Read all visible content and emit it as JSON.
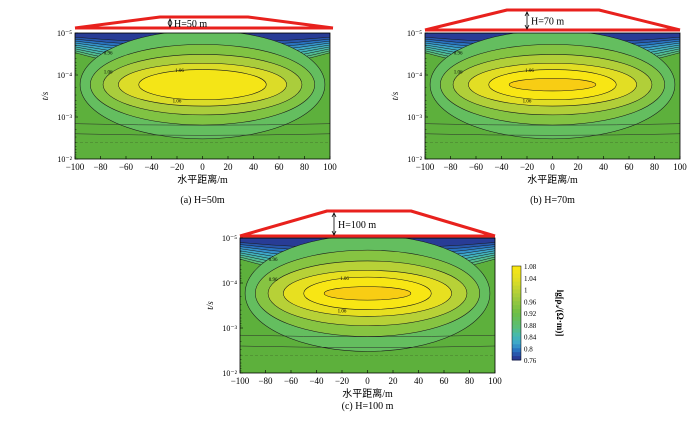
{
  "chart_data": [
    {
      "type": "heatmap",
      "panel_caption": "(a) H=50m",
      "hill_label": "H=50 m",
      "xlabel": "水平距离/m",
      "ylabel": "t/s",
      "x_ticks": [
        "−100",
        "−80",
        "−60",
        "−40",
        "−20",
        "0",
        "20",
        "40",
        "60",
        "80",
        "100"
      ],
      "y_ticks": [
        "10⁻⁵",
        "10⁻⁴",
        "10⁻³",
        "10⁻²"
      ],
      "xlim": [
        -100,
        100
      ],
      "ylim_log_t": [
        -5,
        -2
      ],
      "contour_labels": [
        "0.96",
        "1.06",
        "1.06",
        "1.06"
      ],
      "core": {
        "x_center": 0,
        "log_t_center": -3.88,
        "value": 1.07
      }
    },
    {
      "type": "heatmap",
      "panel_caption": "(b) H=70m",
      "hill_label": "H=70 m",
      "xlabel": "水平距离/m",
      "ylabel": "t/s",
      "x_ticks": [
        "−100",
        "−80",
        "−60",
        "−40",
        "−20",
        "0",
        "20",
        "40",
        "60",
        "80",
        "100"
      ],
      "y_ticks": [
        "10⁻⁵",
        "10⁻⁴",
        "10⁻³",
        "10⁻²"
      ],
      "xlim": [
        -100,
        100
      ],
      "ylim_log_t": [
        -5,
        -2
      ],
      "contour_labels": [
        "0.96",
        "1.06",
        "1.06",
        "1.06"
      ],
      "core": {
        "x_center": 0,
        "log_t_center": -3.88,
        "value": 1.08
      }
    },
    {
      "type": "heatmap",
      "panel_caption": "(c) H=100 m",
      "hill_label": "H=100 m",
      "xlabel": "水平距离/m",
      "ylabel": "t/s",
      "x_ticks": [
        "−100",
        "−80",
        "−60",
        "−40",
        "−20",
        "0",
        "20",
        "40",
        "60",
        "80",
        "100"
      ],
      "y_ticks": [
        "10⁻⁵",
        "10⁻⁴",
        "10⁻³",
        "10⁻²"
      ],
      "xlim": [
        -100,
        100
      ],
      "ylim_log_t": [
        -5,
        -2
      ],
      "contour_labels": [
        "0.96",
        "0.96",
        "1.06",
        "1.06"
      ],
      "core": {
        "x_center": 0,
        "log_t_center": -3.88,
        "value": 1.09
      },
      "colorbar": {
        "label": "lg[ρₐ/(Ω·m)]",
        "ticks": [
          "1.08",
          "1.04",
          "1",
          "0.96",
          "0.92",
          "0.88",
          "0.84",
          "0.8",
          "0.76"
        ]
      }
    }
  ],
  "colors": {
    "hill": "#e8211d",
    "low": "#2a3f99",
    "high": "#f7e512",
    "background": "#5db03c"
  }
}
